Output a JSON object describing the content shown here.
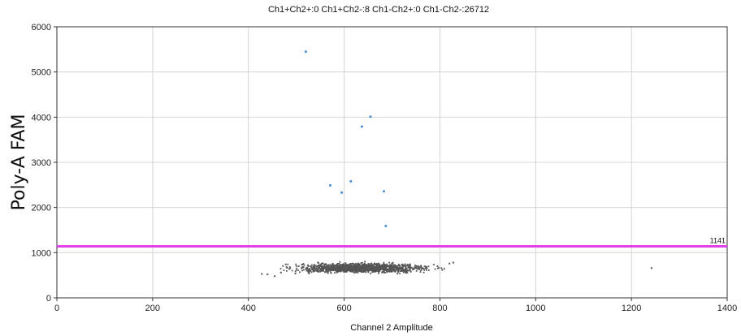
{
  "chart_data": {
    "type": "scatter",
    "title": "Ch1+Ch2+:0  Ch1+Ch2-:8  Ch1-Ch2+:0  Ch1-Ch2-:26712",
    "xlabel": "Channel 2 Amplitude",
    "ylabel": "Poly-A  FAM",
    "xlim": [
      0,
      1400
    ],
    "ylim": [
      0,
      6000
    ],
    "x_ticks": [
      0,
      200,
      400,
      600,
      800,
      1000,
      1200,
      1400
    ],
    "y_ticks": [
      0,
      1000,
      2000,
      3000,
      4000,
      5000,
      6000
    ],
    "grid": true,
    "threshold": {
      "value": 1141,
      "label": "1141",
      "color": "#e040e8"
    },
    "series": [
      {
        "color": "#3a86d8",
        "points": [
          {
            "x": 520,
            "y": 5450
          },
          {
            "x": 655,
            "y": 4010
          },
          {
            "x": 637,
            "y": 3790
          },
          {
            "x": 614,
            "y": 2580
          },
          {
            "x": 571,
            "y": 2490
          },
          {
            "x": 595,
            "y": 2330
          },
          {
            "x": 683,
            "y": 2360
          },
          {
            "x": 687,
            "y": 1590
          }
        ]
      },
      {
        "color": "#555555",
        "cluster": {
          "x_min": 430,
          "x_max": 830,
          "x_center": 635,
          "y_center": 660,
          "y_spread": 60
        },
        "points": [
          {
            "x": 428,
            "y": 530
          },
          {
            "x": 440,
            "y": 520
          },
          {
            "x": 455,
            "y": 480
          },
          {
            "x": 468,
            "y": 560
          },
          {
            "x": 478,
            "y": 740
          },
          {
            "x": 485,
            "y": 640
          },
          {
            "x": 498,
            "y": 540
          },
          {
            "x": 505,
            "y": 700
          },
          {
            "x": 820,
            "y": 760
          },
          {
            "x": 828,
            "y": 780
          },
          {
            "x": 805,
            "y": 620
          },
          {
            "x": 795,
            "y": 700
          },
          {
            "x": 1242,
            "y": 660
          }
        ]
      }
    ]
  }
}
